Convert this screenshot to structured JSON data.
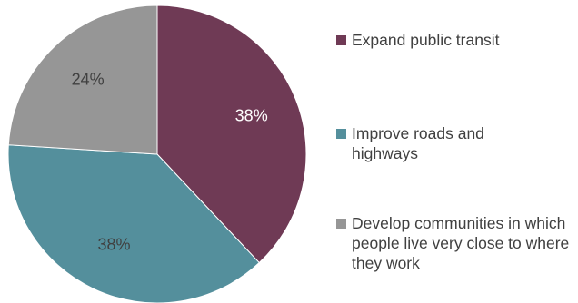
{
  "chart_data": {
    "type": "pie",
    "title": "",
    "categories": [
      "Expand public transit",
      "Improve roads and highways",
      "Develop communities in which people live very close to where they work"
    ],
    "values": [
      38,
      38,
      24
    ],
    "labels": [
      "38%",
      "38%",
      "24%"
    ],
    "colors": [
      "#6f3a55",
      "#548f9c",
      "#969696"
    ],
    "label_colors": [
      "#ffffff",
      "#404040",
      "#404040"
    ],
    "start_angle_deg": 0,
    "direction": "clockwise",
    "legend_position": "right"
  }
}
